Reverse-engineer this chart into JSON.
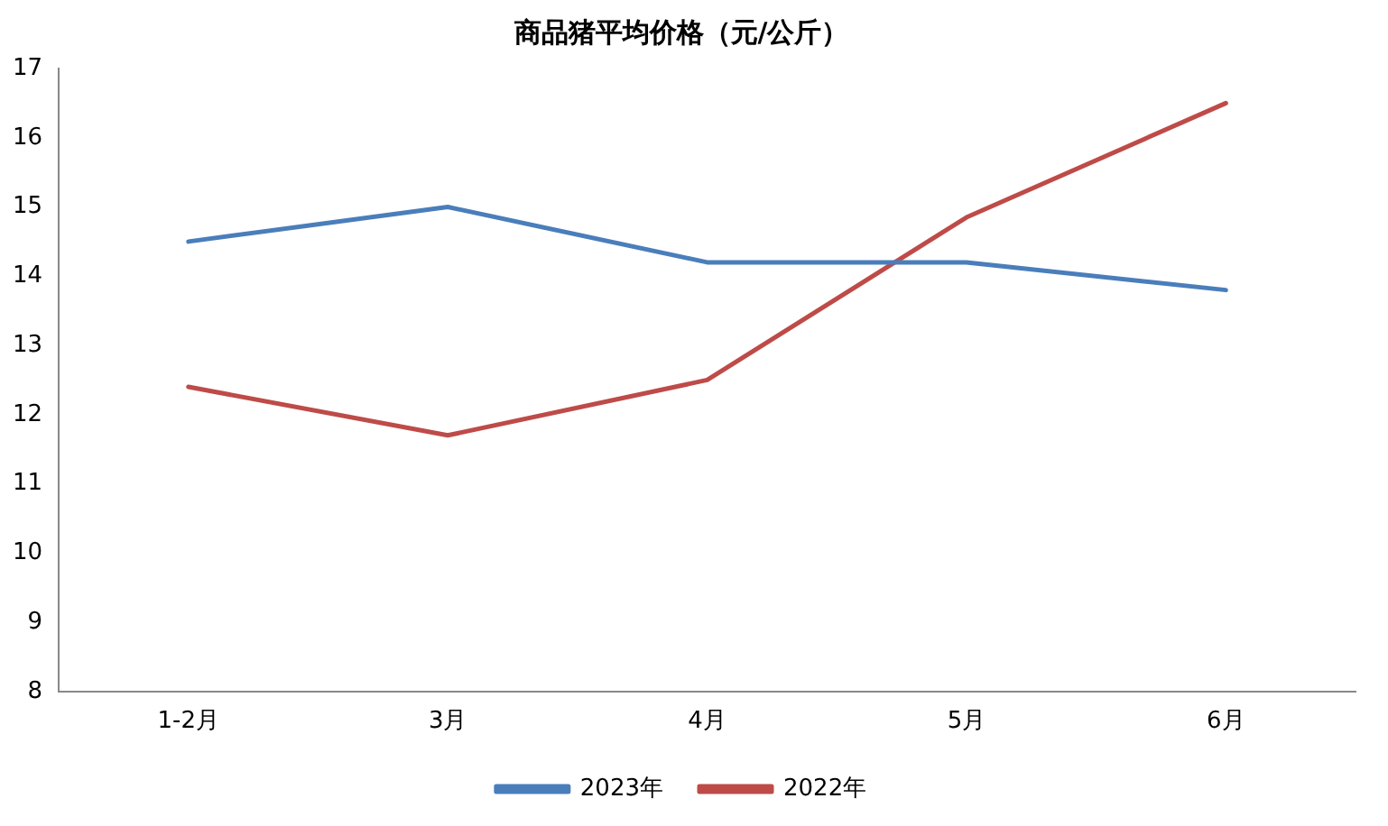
{
  "chart_data": {
    "type": "line",
    "title": "商品猪平均价格（元/公斤）",
    "categories": [
      "1-2月",
      "3月",
      "4月",
      "5月",
      "6月"
    ],
    "series": [
      {
        "name": "2023年",
        "color": "#4a7ebb",
        "values": [
          14.5,
          15.0,
          14.2,
          14.2,
          13.8
        ]
      },
      {
        "name": "2022年",
        "color": "#be4b48",
        "values": [
          12.4,
          11.7,
          12.5,
          14.85,
          16.5
        ]
      }
    ],
    "ylim": [
      8,
      17
    ],
    "yticks": [
      8,
      9,
      10,
      11,
      12,
      13,
      14,
      15,
      16,
      17
    ],
    "grid": false,
    "legend": "bottom",
    "marker": "none",
    "line_style": "solid"
  }
}
